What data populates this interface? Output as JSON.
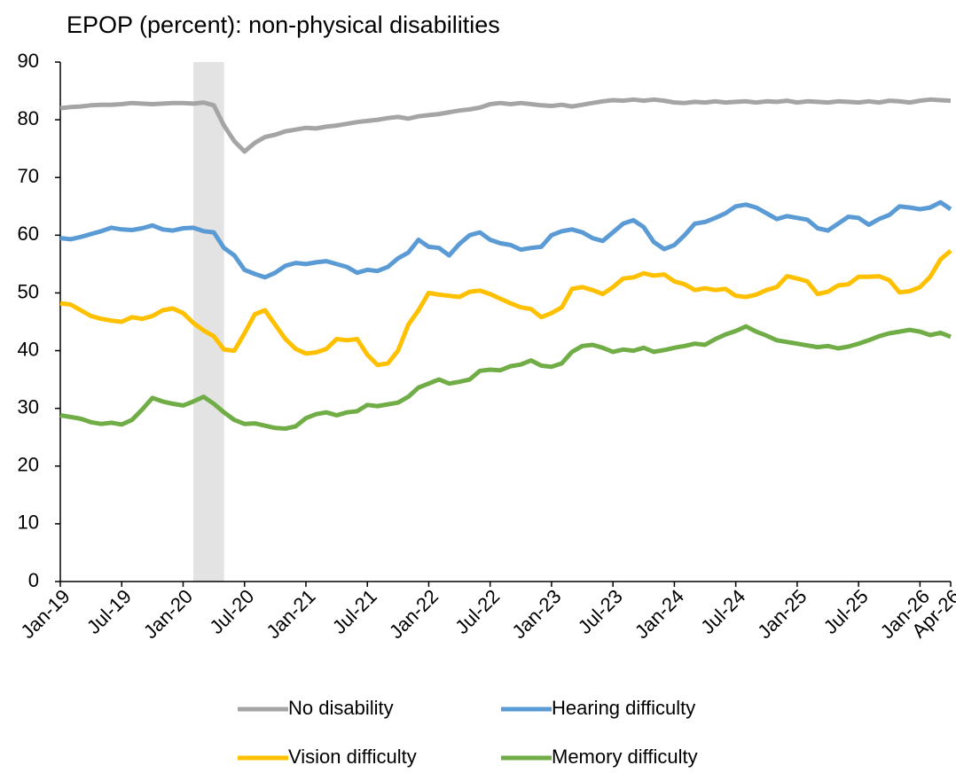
{
  "chart_data": {
    "type": "line",
    "title": "EPOP (percent): non-physical disabilities",
    "categories": [
      "Jan-19",
      null,
      null,
      null,
      null,
      null,
      "Jul-19",
      null,
      null,
      null,
      null,
      null,
      "Jan-20",
      null,
      null,
      null,
      null,
      null,
      "Jul-20",
      null,
      null,
      null,
      null,
      null,
      "Jan-21",
      null,
      null,
      null,
      null,
      null,
      "Jul-21",
      null,
      null,
      null,
      null,
      null,
      "Jan-22",
      null,
      null,
      null,
      null,
      null,
      "Jul-22",
      null,
      null,
      null,
      null,
      null,
      "Jan-23",
      null,
      null,
      null,
      null,
      null,
      "Jul-23",
      null,
      null,
      null,
      null,
      null,
      "Jan-24",
      null,
      null,
      null,
      null,
      null,
      "Jul-24",
      null,
      null,
      null,
      null,
      null,
      "Jan-25",
      null,
      null,
      null,
      null,
      null,
      "Jul-25",
      null,
      null,
      null,
      null,
      null,
      "Jan-26",
      null,
      null,
      "Apr-26"
    ],
    "series": [
      {
        "name": "No disability",
        "color": "#a5a5a5",
        "values": [
          82.0,
          82.2,
          82.3,
          82.5,
          82.6,
          82.6,
          82.7,
          82.9,
          82.8,
          82.7,
          82.8,
          82.9,
          82.9,
          82.8,
          83.0,
          82.5,
          79.0,
          76.3,
          74.5,
          76.0,
          77.0,
          77.4,
          78.0,
          78.3,
          78.6,
          78.5,
          78.8,
          79.0,
          79.3,
          79.6,
          79.8,
          80.0,
          80.3,
          80.5,
          80.2,
          80.6,
          80.8,
          81.0,
          81.3,
          81.6,
          81.8,
          82.1,
          82.7,
          82.9,
          82.7,
          82.9,
          82.7,
          82.5,
          82.4,
          82.6,
          82.3,
          82.6,
          82.9,
          83.2,
          83.4,
          83.3,
          83.5,
          83.3,
          83.5,
          83.3,
          83.0,
          82.9,
          83.1,
          83.0,
          83.2,
          83.0,
          83.1,
          83.2,
          83.0,
          83.2,
          83.1,
          83.3,
          83.0,
          83.2,
          83.1,
          83.0,
          83.2,
          83.1,
          83.0,
          83.2,
          83.0,
          83.3,
          83.2,
          83.0,
          83.3,
          83.5,
          83.4,
          83.3
        ]
      },
      {
        "name": "Hearing difficulty",
        "color": "#5b9bd5",
        "values": [
          59.5,
          59.3,
          59.7,
          60.2,
          60.7,
          61.3,
          61.0,
          60.9,
          61.2,
          61.7,
          61.0,
          60.8,
          61.2,
          61.3,
          60.7,
          60.5,
          57.8,
          56.5,
          54.0,
          53.3,
          52.7,
          53.5,
          54.7,
          55.2,
          55.0,
          55.3,
          55.5,
          55.0,
          54.5,
          53.5,
          54.0,
          53.8,
          54.5,
          56.0,
          57.0,
          59.2,
          58.0,
          57.8,
          56.5,
          58.5,
          60.0,
          60.5,
          59.2,
          58.6,
          58.3,
          57.5,
          57.8,
          58.0,
          60.0,
          60.7,
          61.0,
          60.5,
          59.5,
          59.0,
          60.5,
          62.0,
          62.6,
          61.4,
          58.8,
          57.6,
          58.3,
          60.0,
          62.0,
          62.3,
          63.0,
          63.8,
          65.0,
          65.3,
          64.8,
          63.8,
          62.8,
          63.3,
          63.0,
          62.7,
          61.2,
          60.8,
          62.0,
          63.2,
          63.0,
          61.8,
          62.8,
          63.5,
          65.0,
          64.8,
          64.5,
          64.8,
          65.7,
          64.5
        ]
      },
      {
        "name": "Vision difficulty",
        "color": "#ffc000",
        "values": [
          48.2,
          48.0,
          47.0,
          46.0,
          45.5,
          45.2,
          45.0,
          45.8,
          45.5,
          46.0,
          47.0,
          47.3,
          46.5,
          44.8,
          43.5,
          42.5,
          40.2,
          40.0,
          43.0,
          46.3,
          47.0,
          44.5,
          42.0,
          40.3,
          39.5,
          39.7,
          40.3,
          42.0,
          41.8,
          42.0,
          39.3,
          37.5,
          37.8,
          40.0,
          44.5,
          47.0,
          50.0,
          49.7,
          49.5,
          49.3,
          50.2,
          50.4,
          49.8,
          49.0,
          48.2,
          47.5,
          47.2,
          45.8,
          46.5,
          47.5,
          50.7,
          51.0,
          50.5,
          49.8,
          51.0,
          52.5,
          52.7,
          53.4,
          53.0,
          53.2,
          52.0,
          51.5,
          50.5,
          50.8,
          50.5,
          50.7,
          49.5,
          49.3,
          49.7,
          50.5,
          51.0,
          52.9,
          52.5,
          52.0,
          49.8,
          50.2,
          51.3,
          51.5,
          52.8,
          52.8,
          52.9,
          52.2,
          50.1,
          50.3,
          51.0,
          52.8,
          55.8,
          57.3
        ]
      },
      {
        "name": "Memory difficulty",
        "color": "#70ad47",
        "values": [
          28.8,
          28.5,
          28.2,
          27.6,
          27.3,
          27.5,
          27.2,
          28.0,
          29.8,
          31.8,
          31.2,
          30.8,
          30.5,
          31.2,
          32.0,
          30.8,
          29.3,
          28.0,
          27.3,
          27.4,
          27.0,
          26.6,
          26.5,
          26.9,
          28.3,
          29.0,
          29.3,
          28.8,
          29.3,
          29.5,
          30.6,
          30.4,
          30.7,
          31.0,
          32.0,
          33.6,
          34.3,
          35.0,
          34.3,
          34.6,
          35.0,
          36.5,
          36.7,
          36.6,
          37.3,
          37.6,
          38.3,
          37.4,
          37.2,
          37.8,
          39.8,
          40.8,
          41.0,
          40.5,
          39.8,
          40.2,
          40.0,
          40.5,
          39.8,
          40.1,
          40.5,
          40.8,
          41.2,
          41.0,
          42.0,
          42.8,
          43.4,
          44.2,
          43.3,
          42.6,
          41.8,
          41.5,
          41.2,
          40.9,
          40.6,
          40.8,
          40.4,
          40.7,
          41.2,
          41.8,
          42.5,
          43.0,
          43.3,
          43.6,
          43.3,
          42.7,
          43.1,
          42.4
        ]
      }
    ],
    "ylim": [
      0,
      90
    ],
    "yticks": [
      0,
      10,
      20,
      30,
      40,
      50,
      60,
      70,
      80,
      90
    ],
    "shaded_period": [
      13,
      16
    ],
    "shade_color": "#e3e3e3",
    "grid": false,
    "legend": "bottom"
  }
}
